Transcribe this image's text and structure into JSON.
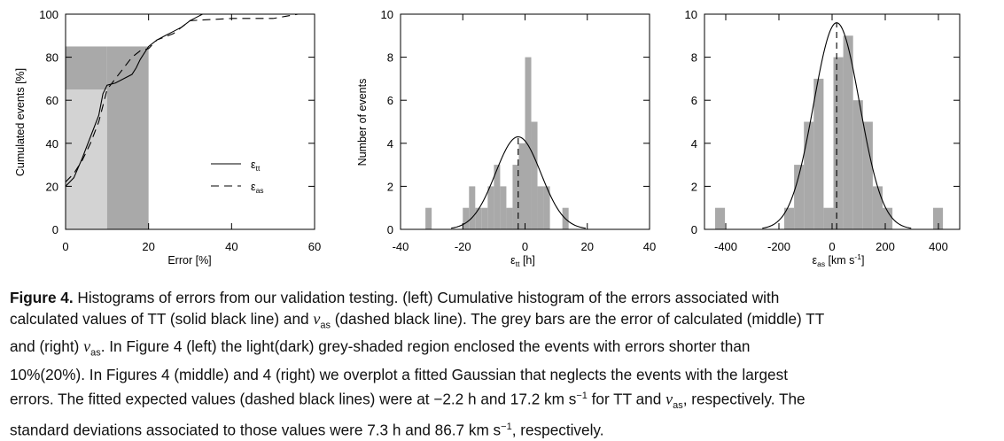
{
  "chart_data": [
    {
      "type": "line",
      "panel": "left",
      "xlabel": "Error [%]",
      "ylabel": "Cumulated events [%]",
      "xlim": [
        0,
        60
      ],
      "ylim": [
        0,
        100
      ],
      "xticks": [
        "0",
        "20",
        "40",
        "60"
      ],
      "yticks": [
        "0",
        "20",
        "40",
        "60",
        "80",
        "100"
      ],
      "shaded_regions": [
        {
          "x": [
            0,
            10
          ],
          "y": [
            0,
            65
          ],
          "color": "#d3d3d3"
        },
        {
          "x": [
            10,
            20
          ],
          "y": [
            0,
            85
          ],
          "color": "#a9a9a9"
        },
        {
          "x": [
            0,
            10
          ],
          "y": [
            65,
            85
          ],
          "color": "#a9a9a9"
        }
      ],
      "series": [
        {
          "name": "ε_tt",
          "style": "solid",
          "x": [
            0,
            2,
            4,
            6,
            8,
            9,
            10,
            12,
            14,
            16,
            17,
            18,
            20,
            22,
            24,
            26,
            28,
            30,
            32,
            33,
            60
          ],
          "y": [
            20,
            24,
            33,
            43,
            53,
            63,
            67,
            68,
            70,
            72,
            75,
            79,
            85,
            88,
            90,
            92,
            94,
            97,
            99,
            100,
            100
          ]
        },
        {
          "name": "ε_as",
          "style": "dashed",
          "x": [
            0,
            2,
            4,
            6,
            8,
            10,
            12,
            14,
            16,
            18,
            20,
            22,
            26,
            30,
            40,
            50,
            53,
            56
          ],
          "y": [
            22,
            26,
            32,
            40,
            50,
            65,
            70,
            75,
            80,
            83,
            84,
            88,
            91,
            97,
            98,
            98,
            99,
            100
          ]
        }
      ],
      "legend": [
        {
          "label": "ε",
          "sub": "tt",
          "style": "solid"
        },
        {
          "label": "ε",
          "sub": "as",
          "style": "dashed"
        }
      ],
      "legend_position": "center-right"
    },
    {
      "type": "bar",
      "panel": "middle",
      "xlabel": "ε",
      "xlabel_sub": "tt",
      "xlabel_unit": " [h]",
      "ylabel": "Number of events",
      "xlim": [
        -40,
        40
      ],
      "ylim": [
        0,
        10
      ],
      "xticks": [
        "-40",
        "-20",
        "0",
        "20",
        "40"
      ],
      "yticks": [
        "0",
        "2",
        "4",
        "6",
        "8",
        "10"
      ],
      "bin_width": 2,
      "bins": [
        {
          "x0": -32,
          "count": 1
        },
        {
          "x0": -20,
          "count": 1
        },
        {
          "x0": -18,
          "count": 2
        },
        {
          "x0": -16,
          "count": 1
        },
        {
          "x0": -14,
          "count": 1
        },
        {
          "x0": -12,
          "count": 2
        },
        {
          "x0": -10,
          "count": 3
        },
        {
          "x0": -8,
          "count": 2
        },
        {
          "x0": -6,
          "count": 1
        },
        {
          "x0": -4,
          "count": 3
        },
        {
          "x0": -2,
          "count": 4
        },
        {
          "x0": 0,
          "count": 8
        },
        {
          "x0": 2,
          "count": 5
        },
        {
          "x0": 4,
          "count": 2
        },
        {
          "x0": 6,
          "count": 2
        },
        {
          "x0": 12,
          "count": 1
        }
      ],
      "gaussian": {
        "mean": -2.2,
        "sigma": 7.3,
        "amplitude": 4.3
      },
      "dashed_line_x": -2.2
    },
    {
      "type": "bar",
      "panel": "right",
      "xlabel": "ε",
      "xlabel_sub": "as",
      "xlabel_unit": " [km s",
      "xlabel_sup": "-1",
      "xlabel_end": "]",
      "ylabel": "",
      "xlim": [
        -480,
        480
      ],
      "ylim": [
        0,
        10
      ],
      "xticks": [
        "-400",
        "-200",
        "0",
        "200",
        "400"
      ],
      "yticks": [
        "0",
        "2",
        "4",
        "6",
        "8",
        "10"
      ],
      "bin_width": 37,
      "bins": [
        {
          "x0": -440,
          "count": 1
        },
        {
          "x0": -180,
          "count": 1
        },
        {
          "x0": -143,
          "count": 3
        },
        {
          "x0": -106,
          "count": 5
        },
        {
          "x0": -69,
          "count": 7
        },
        {
          "x0": -32,
          "count": 1
        },
        {
          "x0": 5,
          "count": 8
        },
        {
          "x0": 42,
          "count": 9
        },
        {
          "x0": 79,
          "count": 6
        },
        {
          "x0": 116,
          "count": 5
        },
        {
          "x0": 153,
          "count": 2
        },
        {
          "x0": 190,
          "count": 1
        },
        {
          "x0": 380,
          "count": 1
        }
      ],
      "gaussian": {
        "mean": 17.2,
        "sigma": 86.7,
        "amplitude": 9.6
      },
      "dashed_line_x": 17.2
    }
  ],
  "caption": {
    "label": "Figure 4.",
    "line1": " Histograms of errors from our validation testing. (left) Cumulative histogram of the errors associated with",
    "line2_a": "calculated values of TT (solid black line) and ",
    "v": "v",
    "as": "as",
    "line2_b": " (dashed black line). The grey bars are the error of calculated (middle) TT",
    "line3_a": "and (right) ",
    "line3_b": ". In Figure 4 (left) the light(dark) grey-shaded region enclosed the events with errors shorter than",
    "line4": "10%(20%). In Figures 4 (middle) and 4 (right) we overplot a fitted Gaussian that neglects the events with the largest",
    "line5_a": "errors. The fitted expected values (dashed black lines) were at −2.2 h and 17.2 km s",
    "sup": "−1",
    "line5_b": " for TT and ",
    "line5_c": ", respectively. The",
    "line6_a": "standard deviations associated to those values were 7.3 h and 86.7 km s",
    "line6_b": ", respectively."
  }
}
